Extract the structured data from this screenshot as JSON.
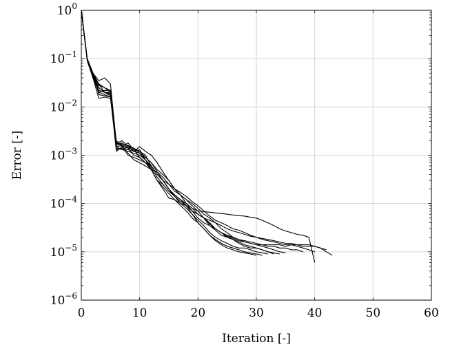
{
  "chart_data": {
    "type": "line",
    "title": "",
    "xlabel": "Iteration [-]",
    "ylabel": "Error [-]",
    "xlim": [
      0,
      60
    ],
    "ylim": [
      1e-06,
      1
    ],
    "yscale": "log",
    "grid": true,
    "line_color": "#000000",
    "grid_color": "#d3d3d3",
    "x_ticks": [
      0,
      10,
      20,
      30,
      40,
      50,
      60
    ],
    "x_tick_labels": [
      "0",
      "10",
      "20",
      "30",
      "40",
      "50",
      "60"
    ],
    "y_ticks": [
      1e-06,
      1e-05,
      0.0001,
      0.001,
      0.01,
      0.1,
      1
    ],
    "y_tick_labels": [
      {
        "base": "10",
        "exp": "−6"
      },
      {
        "base": "10",
        "exp": "−5"
      },
      {
        "base": "10",
        "exp": "−4"
      },
      {
        "base": "10",
        "exp": "−3"
      },
      {
        "base": "10",
        "exp": "−2"
      },
      {
        "base": "10",
        "exp": "−1"
      },
      {
        "base": "10",
        "exp": "0"
      }
    ],
    "series": [
      {
        "x": [
          0,
          1,
          2,
          3,
          4,
          5,
          6,
          7,
          8,
          9,
          10,
          11,
          12,
          13,
          14,
          15,
          16,
          17,
          18,
          19,
          20,
          21,
          22,
          23,
          24,
          25,
          26,
          27,
          28,
          29,
          30,
          31,
          32,
          33,
          34,
          35,
          36,
          37,
          38,
          39,
          40
        ],
        "y": [
          1,
          0.1,
          0.05,
          0.035,
          0.04,
          0.03,
          0.0018,
          0.002,
          0.0015,
          0.0012,
          0.0013,
          0.0008,
          0.0005,
          0.0003,
          0.00025,
          0.00018,
          0.00015,
          0.00012,
          0.0001,
          8e-05,
          7e-05,
          6.8e-05,
          6.6e-05,
          6.4e-05,
          6.2e-05,
          6e-05,
          5.8e-05,
          5.6e-05,
          5.5e-05,
          5.2e-05,
          5e-05,
          4.5e-05,
          4e-05,
          3.5e-05,
          3e-05,
          2.7e-05,
          2.5e-05,
          2.3e-05,
          2.2e-05,
          2e-05,
          6e-06
        ]
      },
      {
        "x": [
          0,
          1,
          2,
          3,
          4,
          5,
          6,
          7,
          8,
          9,
          10,
          11,
          12,
          13,
          14,
          15,
          16,
          17,
          18,
          19,
          20,
          21,
          22,
          23,
          24,
          25,
          26,
          27,
          28,
          29,
          30,
          31,
          32,
          33,
          34,
          35,
          36,
          37,
          38,
          39,
          40,
          41,
          42,
          43
        ],
        "y": [
          1,
          0.09,
          0.04,
          0.02,
          0.022,
          0.022,
          0.0018,
          0.0017,
          0.0016,
          0.0012,
          0.0011,
          0.0009,
          0.0007,
          0.00045,
          0.0003,
          0.00025,
          0.0002,
          0.00017,
          0.00014,
          0.00011,
          9e-05,
          7e-05,
          5.5e-05,
          4.5e-05,
          4e-05,
          3.5e-05,
          3e-05,
          2.8e-05,
          2.5e-05,
          2.2e-05,
          2e-05,
          1.8e-05,
          1.7e-05,
          1.6e-05,
          1.5e-05,
          1.4e-05,
          1.4e-05,
          1.4e-05,
          1.3e-05,
          1.3e-05,
          1.3e-05,
          1.2e-05,
          1e-05,
          8.5e-06
        ]
      },
      {
        "x": [
          0,
          1,
          2,
          3,
          4,
          5,
          6,
          7,
          8,
          9,
          10,
          11,
          12,
          13,
          14,
          15,
          16,
          17,
          18,
          19,
          20,
          21,
          22,
          23,
          24,
          25,
          26,
          27,
          28,
          29,
          30,
          31,
          32,
          33
        ],
        "y": [
          1,
          0.1,
          0.04,
          0.025,
          0.02,
          0.02,
          0.0015,
          0.0016,
          0.0014,
          0.0013,
          0.0012,
          0.001,
          0.0006,
          0.0004,
          0.0003,
          0.0002,
          0.00015,
          0.00012,
          0.0001,
          8e-05,
          6e-05,
          5e-05,
          4e-05,
          3e-05,
          2.5e-05,
          2e-05,
          1.8e-05,
          1.5e-05,
          1.3e-05,
          1.2e-05,
          1.2e-05,
          1.1e-05,
          1e-05,
          9e-06
        ]
      },
      {
        "x": [
          0,
          1,
          2,
          3,
          4,
          5,
          6,
          7,
          8,
          9,
          10,
          11,
          12,
          13,
          14,
          15,
          16,
          17,
          18,
          19,
          20,
          21,
          22,
          23,
          24,
          25,
          26,
          27,
          28,
          29,
          30,
          31,
          32,
          33,
          34,
          35,
          36,
          37,
          38,
          39,
          40
        ],
        "y": [
          1,
          0.1,
          0.05,
          0.03,
          0.02,
          0.018,
          0.0012,
          0.0015,
          0.0018,
          0.0013,
          0.0009,
          0.0007,
          0.0005,
          0.0003,
          0.0002,
          0.00013,
          0.00012,
          0.0001,
          9e-05,
          7e-05,
          6e-05,
          5e-05,
          3.5e-05,
          3e-05,
          2.5e-05,
          2.2e-05,
          2e-05,
          1.8e-05,
          1.7e-05,
          1.6e-05,
          1.5e-05,
          1.4e-05,
          1.4e-05,
          1.4e-05,
          1.4e-05,
          1.3e-05,
          1.4e-05,
          1.3e-05,
          1.2e-05,
          1.1e-05,
          1e-05
        ]
      },
      {
        "x": [
          0,
          1,
          2,
          3,
          4,
          5,
          6,
          7,
          8,
          9,
          10,
          11,
          12,
          13,
          14,
          15,
          16,
          17,
          18,
          19,
          20,
          21,
          22,
          23,
          24,
          25,
          26,
          27,
          28,
          29,
          30,
          31,
          32,
          33,
          34,
          35
        ],
        "y": [
          1,
          0.1,
          0.045,
          0.02,
          0.018,
          0.016,
          0.0013,
          0.0014,
          0.0013,
          0.0012,
          0.0015,
          0.0012,
          0.001,
          0.0007,
          0.00045,
          0.0003,
          0.0002,
          0.00015,
          0.00012,
          9e-05,
          7e-05,
          5e-05,
          3.8e-05,
          3e-05,
          2.5e-05,
          2.1e-05,
          1.9e-05,
          1.7e-05,
          1.6e-05,
          1.5e-05,
          1.4e-05,
          1.3e-05,
          1.2e-05,
          1.1e-05,
          1e-05,
          9.5e-06
        ]
      },
      {
        "x": [
          0,
          1,
          2,
          3,
          4,
          5,
          6,
          7,
          8,
          9,
          10,
          11,
          12,
          13,
          14,
          15,
          16,
          17,
          18,
          19,
          20,
          21,
          22,
          23,
          24,
          25,
          26,
          27,
          28,
          29,
          30,
          31,
          32
        ],
        "y": [
          1,
          0.1,
          0.04,
          0.015,
          0.016,
          0.015,
          0.002,
          0.0015,
          0.001,
          0.0009,
          0.0008,
          0.0007,
          0.0006,
          0.0004,
          0.0003,
          0.0002,
          0.00015,
          0.00012,
          9e-05,
          6e-05,
          4.5e-05,
          3.5e-05,
          2.5e-05,
          2e-05,
          1.7e-05,
          1.5e-05,
          1.3e-05,
          1.2e-05,
          1.2e-05,
          1.1e-05,
          1e-05,
          9.5e-06,
          9e-06
        ]
      },
      {
        "x": [
          0,
          1,
          2,
          3,
          4,
          5,
          6,
          7,
          8,
          9,
          10,
          11,
          12,
          13,
          14,
          15,
          16,
          17,
          18,
          19,
          20,
          21,
          22,
          23,
          24,
          25,
          26,
          27,
          28,
          29,
          30,
          31,
          32,
          33,
          34
        ],
        "y": [
          1,
          0.1,
          0.05,
          0.028,
          0.025,
          0.02,
          0.0018,
          0.0016,
          0.0011,
          0.0008,
          0.0007,
          0.0006,
          0.0005,
          0.00045,
          0.00035,
          0.00025,
          0.00018,
          0.00015,
          0.0001,
          7e-05,
          5e-05,
          4e-05,
          3.5e-05,
          2.8e-05,
          2.2e-05,
          2e-05,
          1.8e-05,
          1.6e-05,
          1.4e-05,
          1.3e-05,
          1.2e-05,
          1.1e-05,
          1e-05,
          9.5e-06,
          9e-06
        ]
      },
      {
        "x": [
          0,
          1,
          2,
          3,
          4,
          5,
          6,
          7,
          8,
          9,
          10,
          11,
          12,
          13,
          14,
          15,
          16,
          17,
          18,
          19,
          20,
          21,
          22,
          23,
          24,
          25,
          26,
          27,
          28,
          29,
          30,
          31
        ],
        "y": [
          1,
          0.1,
          0.045,
          0.022,
          0.02,
          0.019,
          0.0017,
          0.0018,
          0.0014,
          0.001,
          0.0009,
          0.0007,
          0.0005,
          0.0003,
          0.00022,
          0.00016,
          0.00012,
          9e-05,
          7e-05,
          5e-05,
          4e-05,
          3e-05,
          2.2e-05,
          1.8e-05,
          1.5e-05,
          1.3e-05,
          1.2e-05,
          1.1e-05,
          1e-05,
          9.5e-06,
          9e-06,
          8.5e-06
        ]
      },
      {
        "x": [
          0,
          1,
          2,
          3,
          4,
          5,
          6,
          7,
          8,
          9,
          10,
          11,
          12,
          13,
          14,
          15,
          16,
          17,
          18,
          19,
          20,
          21,
          22,
          23,
          24,
          25,
          26,
          27,
          28,
          29,
          30
        ],
        "y": [
          1,
          0.1,
          0.05,
          0.018,
          0.017,
          0.016,
          0.0015,
          0.0013,
          0.0012,
          0.0011,
          0.001,
          0.0008,
          0.0006,
          0.0004,
          0.0003,
          0.0002,
          0.00014,
          0.0001,
          8e-05,
          6e-05,
          4e-05,
          3e-05,
          2.2e-05,
          1.7e-05,
          1.4e-05,
          1.2e-05,
          1.1e-05,
          1e-05,
          9.5e-06,
          9e-06,
          8.5e-06
        ]
      },
      {
        "x": [
          0,
          1,
          2,
          3,
          4,
          5,
          6,
          7,
          8,
          9,
          10,
          11,
          12,
          13,
          14,
          15,
          16,
          17,
          18,
          19,
          20,
          21,
          22,
          23,
          24,
          25,
          26,
          27,
          28,
          29,
          30,
          31,
          32,
          33,
          34,
          35,
          36,
          37,
          38,
          39,
          40,
          41,
          42
        ],
        "y": [
          1,
          0.1,
          0.04,
          0.03,
          0.025,
          0.022,
          0.0014,
          0.0013,
          0.0015,
          0.0014,
          0.0011,
          0.0008,
          0.00055,
          0.00035,
          0.00025,
          0.00018,
          0.00014,
          0.00011,
          9e-05,
          7e-05,
          6e-05,
          5e-05,
          4.5e-05,
          4e-05,
          3.5e-05,
          3e-05,
          2.7e-05,
          2.5e-05,
          2.3e-05,
          2.1e-05,
          2e-05,
          1.9e-05,
          1.8e-05,
          1.7e-05,
          1.6e-05,
          1.5e-05,
          1.5e-05,
          1.4e-05,
          1.4e-05,
          1.4e-05,
          1.3e-05,
          1.2e-05,
          1.1e-05
        ]
      },
      {
        "x": [
          0,
          1,
          2,
          3,
          4,
          5,
          6,
          7,
          8,
          9,
          10,
          11,
          12,
          13,
          14,
          15,
          16,
          17,
          18,
          19,
          20,
          21,
          22,
          23,
          24,
          25,
          26,
          27,
          28,
          29,
          30,
          31,
          32,
          33,
          34,
          35,
          36,
          37,
          38
        ],
        "y": [
          1,
          0.1,
          0.05,
          0.025,
          0.02,
          0.017,
          0.0016,
          0.0017,
          0.0016,
          0.0014,
          0.0012,
          0.0009,
          0.0007,
          0.0005,
          0.0004,
          0.0003,
          0.0002,
          0.00015,
          0.00012,
          0.0001,
          8e-05,
          6e-05,
          5e-05,
          4e-05,
          3e-05,
          2.5e-05,
          2e-05,
          1.8e-05,
          1.6e-05,
          1.5e-05,
          1.4e-05,
          1.4e-05,
          1.3e-05,
          1.3e-05,
          1.2e-05,
          1.2e-05,
          1.1e-05,
          1.1e-05,
          1e-05
        ]
      }
    ]
  }
}
